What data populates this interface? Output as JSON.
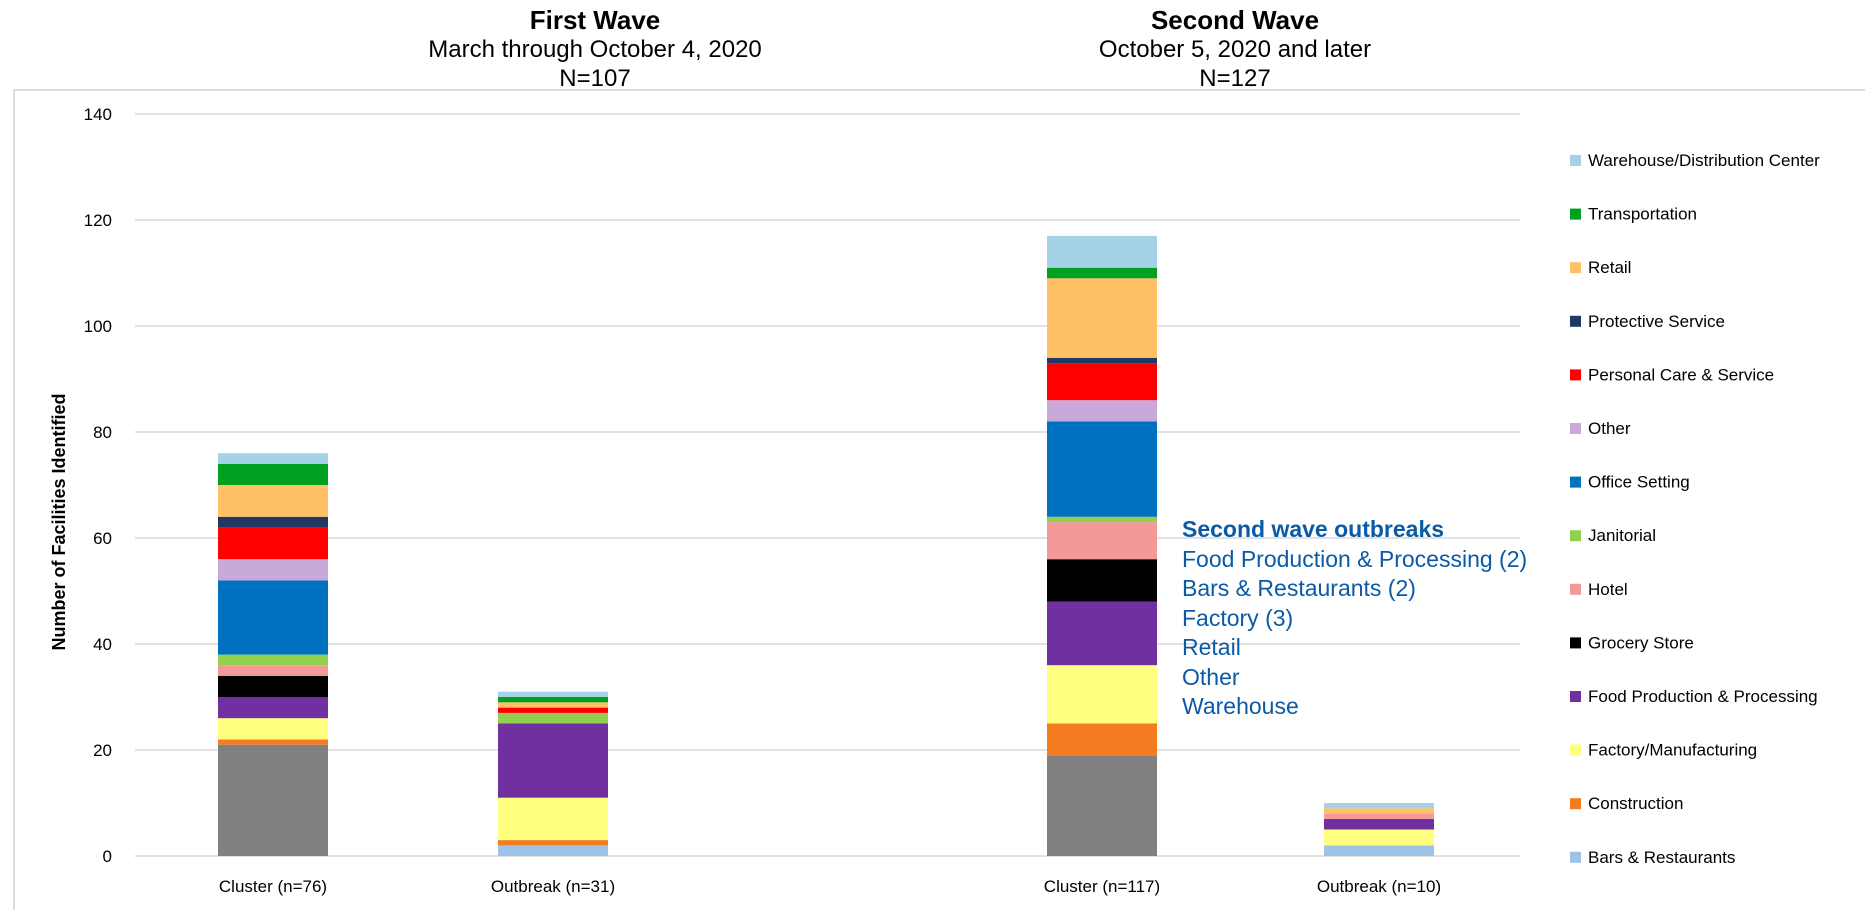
{
  "headers": {
    "first": {
      "title": "First Wave",
      "subtitle": "March through October 4, 2020",
      "n": "N=107"
    },
    "second": {
      "title": "Second Wave",
      "subtitle": "October 5, 2020 and later",
      "n": "N=127"
    }
  },
  "annotation": {
    "title": "Second wave outbreaks",
    "lines": [
      "Food Production & Processing (2)",
      "Bars & Restaurants (2)",
      "Factory (3)",
      "Retail",
      "Other",
      "Warehouse"
    ]
  },
  "chart_data": {
    "type": "bar",
    "stacked": true,
    "ylabel": "Number of Facilities Identified",
    "xlabel": "",
    "ylim": [
      0,
      140
    ],
    "yticks": [
      0,
      20,
      40,
      60,
      80,
      100,
      120,
      140
    ],
    "grid": true,
    "legend_position": "right",
    "categories": [
      "Cluster (n=76)",
      "Outbreak (n=31)",
      "Cluster (n=117)",
      "Outbreak (n=10)"
    ],
    "series": [
      {
        "name": "",
        "color": "#808080",
        "values": [
          21,
          0,
          19,
          0
        ]
      },
      {
        "name": "Bars & Restaurants",
        "color": "#9dc3e6",
        "values": [
          0,
          2,
          0,
          2
        ]
      },
      {
        "name": "Construction",
        "color": "#f47b20",
        "values": [
          1,
          1,
          6,
          0
        ]
      },
      {
        "name": "Factory/Manufacturing",
        "color": "#ffff80",
        "values": [
          4,
          8,
          11,
          3
        ]
      },
      {
        "name": "Food Production & Processing",
        "color": "#7030a0",
        "values": [
          4,
          14,
          12,
          2
        ]
      },
      {
        "name": "Grocery Store",
        "color": "#000000",
        "values": [
          4,
          0,
          8,
          0
        ]
      },
      {
        "name": "Hotel",
        "color": "#f4999a",
        "values": [
          2,
          0,
          7,
          1
        ]
      },
      {
        "name": "Janitorial",
        "color": "#92d050",
        "values": [
          2,
          2,
          1,
          0
        ]
      },
      {
        "name": "Office Setting",
        "color": "#0070c0",
        "values": [
          14,
          0,
          18,
          0
        ]
      },
      {
        "name": "Other",
        "color": "#c9a9d9",
        "values": [
          4,
          0,
          4,
          0
        ]
      },
      {
        "name": "Personal Care & Service",
        "color": "#ff0000",
        "values": [
          6,
          1,
          7,
          0
        ]
      },
      {
        "name": "Protective Service",
        "color": "#203864",
        "values": [
          2,
          0,
          1,
          0
        ]
      },
      {
        "name": "Retail",
        "color": "#ffc066",
        "values": [
          6,
          1,
          15,
          1
        ]
      },
      {
        "name": "Transportation",
        "color": "#00a020",
        "values": [
          4,
          1,
          2,
          0
        ]
      },
      {
        "name": "Warehouse/Distribution Center",
        "color": "#a6d2e8",
        "values": [
          2,
          1,
          6,
          1
        ]
      }
    ]
  }
}
